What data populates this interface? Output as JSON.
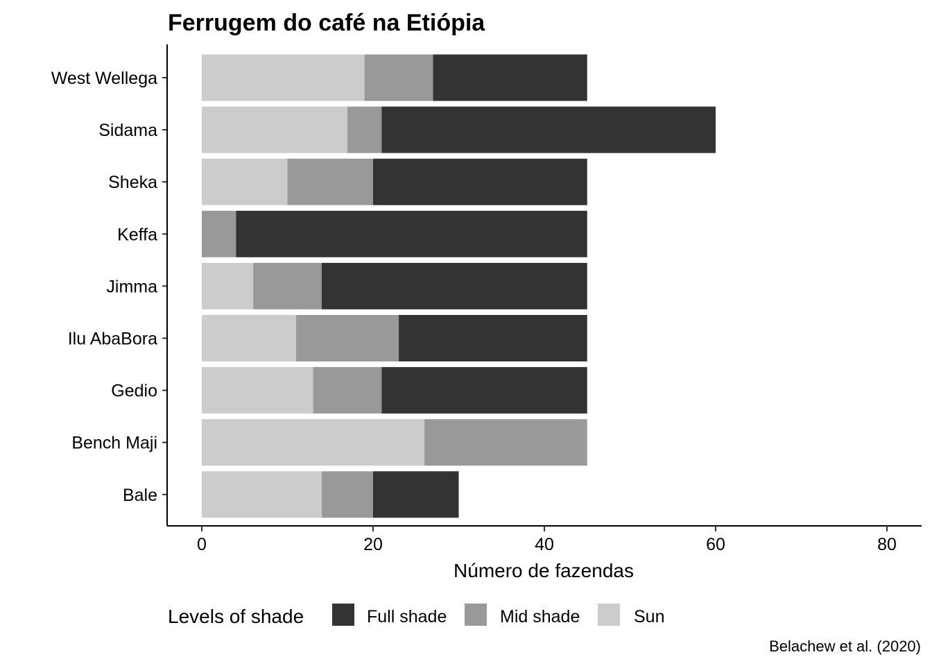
{
  "chart_data": {
    "type": "bar",
    "orientation": "horizontal",
    "stacked": true,
    "title": "Ferrugem do café na Etiópia",
    "xlabel": "Número de fazendas",
    "ylabel": "",
    "caption": "Belachew et al. (2020)",
    "xlim": [
      0,
      80
    ],
    "xticks": [
      0,
      20,
      40,
      60,
      80
    ],
    "grid": false,
    "legend": {
      "title": "Levels of shade",
      "position": "bottom"
    },
    "categories": [
      "West Wellega",
      "Sidama",
      "Sheka",
      "Keffa",
      "Jimma",
      "Ilu AbaBora",
      "Gedio",
      "Bench Maji",
      "Bale"
    ],
    "series": [
      {
        "name": "Sun",
        "color": "#cccccc",
        "values": [
          19,
          17,
          10,
          0,
          6,
          11,
          13,
          26,
          14
        ]
      },
      {
        "name": "Mid shade",
        "color": "#999999",
        "values": [
          8,
          4,
          10,
          4,
          8,
          12,
          8,
          19,
          6
        ]
      },
      {
        "name": "Full shade",
        "color": "#333333",
        "values": [
          18,
          39,
          25,
          41,
          31,
          22,
          24,
          0,
          10
        ]
      }
    ],
    "legend_order": [
      "Full shade",
      "Mid shade",
      "Sun"
    ]
  }
}
